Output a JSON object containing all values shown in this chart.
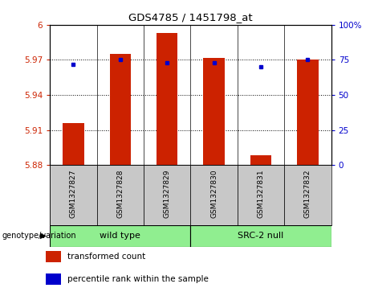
{
  "title": "GDS4785 / 1451798_at",
  "samples": [
    "GSM1327827",
    "GSM1327828",
    "GSM1327829",
    "GSM1327830",
    "GSM1327831",
    "GSM1327832"
  ],
  "bar_values": [
    5.916,
    5.975,
    5.993,
    5.972,
    5.888,
    5.97
  ],
  "percentile_values": [
    72,
    75,
    73,
    73,
    70,
    75
  ],
  "ylim_left": [
    5.88,
    6.0
  ],
  "ylim_right": [
    0,
    100
  ],
  "yticks_left": [
    5.88,
    5.91,
    5.94,
    5.97,
    6.0
  ],
  "yticks_right": [
    0,
    25,
    50,
    75,
    100
  ],
  "ytick_labels_left": [
    "5.88",
    "5.91",
    "5.94",
    "5.97",
    "6"
  ],
  "ytick_labels_right": [
    "0",
    "25",
    "50",
    "75",
    "100%"
  ],
  "bar_color": "#CC2200",
  "dot_color": "#0000CC",
  "bg_color": "#FFFFFF",
  "tick_area_color": "#C8C8C8",
  "group_color": "#90EE90",
  "group_ranges": [
    [
      -0.5,
      2.5,
      "wild type"
    ],
    [
      2.5,
      5.5,
      "SRC-2 null"
    ]
  ],
  "genotype_label": "genotype/variation",
  "legend_items": [
    {
      "label": "transformed count",
      "color": "#CC2200"
    },
    {
      "label": "percentile rank within the sample",
      "color": "#0000CC"
    }
  ]
}
